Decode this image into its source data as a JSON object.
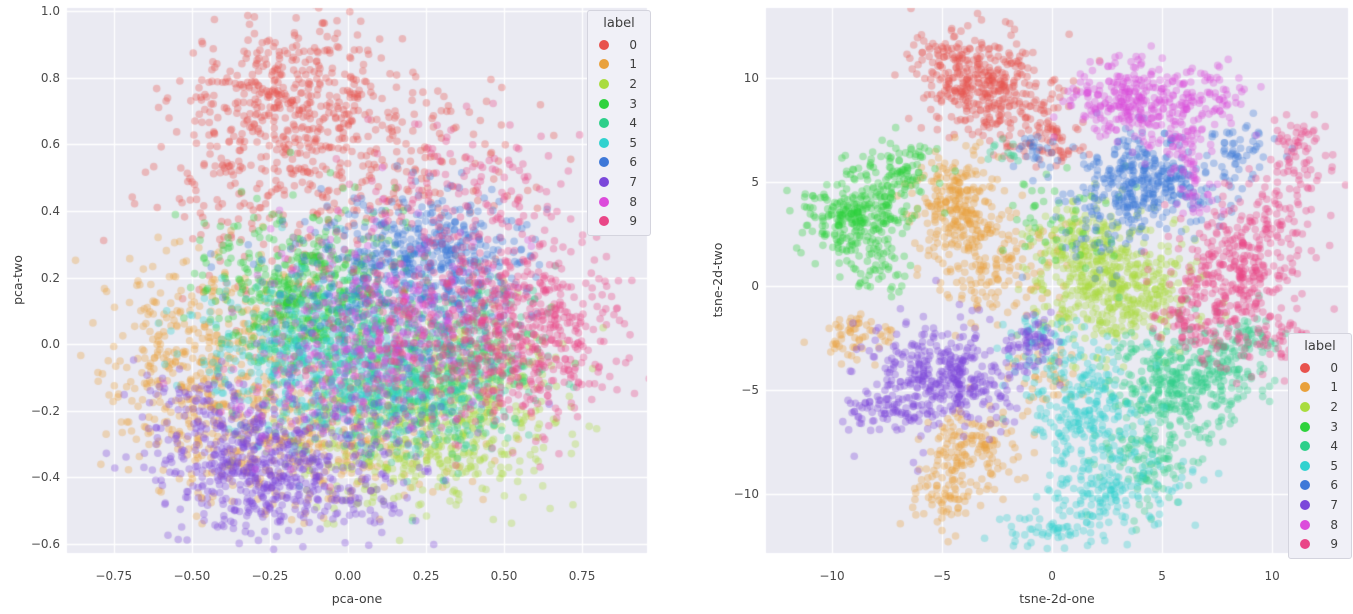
{
  "style": {
    "figure_bg": "#ffffff",
    "plot_bg": "#eaeaf2",
    "grid_color": "#ffffff",
    "tick_color": "#4a4a4a",
    "label_color": "#3d3d3d",
    "legend_bg": "#f0f0f7",
    "legend_border": "#d4d4de",
    "marker_alpha": 0.33,
    "marker_radius": 3.8
  },
  "chart_data": [
    {
      "type": "scatter",
      "title": "",
      "xlabel": "pca-one",
      "ylabel": "pca-two",
      "xlim": [
        -0.9,
        0.958
      ],
      "ylim": [
        -0.628,
        1.01
      ],
      "grid": true,
      "legend_position": "top-right",
      "xticks": [
        {
          "v": -0.75,
          "label": "−0.75"
        },
        {
          "v": -0.5,
          "label": "−0.50"
        },
        {
          "v": -0.25,
          "label": "−0.25"
        },
        {
          "v": 0.0,
          "label": "0.00"
        },
        {
          "v": 0.25,
          "label": "0.25"
        },
        {
          "v": 0.5,
          "label": "0.50"
        },
        {
          "v": 0.75,
          "label": "0.75"
        }
      ],
      "yticks": [
        {
          "v": 1.0,
          "label": "1.0"
        },
        {
          "v": 0.8,
          "label": "0.8"
        },
        {
          "v": 0.6,
          "label": "0.6"
        },
        {
          "v": 0.4,
          "label": "0.4"
        },
        {
          "v": 0.2,
          "label": "0.2"
        },
        {
          "v": 0.0,
          "label": "0.0"
        },
        {
          "v": -0.2,
          "label": "−0.2"
        },
        {
          "v": -0.4,
          "label": "−0.4"
        },
        {
          "v": -0.6,
          "label": "−0.6"
        }
      ],
      "legend": {
        "title": "label"
      },
      "series": [
        {
          "label": "0",
          "color": "#e8524d",
          "clusters": [
            [
              -0.18,
              0.74,
              0.18,
              0.11,
              420
            ],
            [
              0.05,
              0.52,
              0.26,
              0.12,
              170
            ],
            [
              -0.33,
              0.48,
              0.14,
              0.11,
              90
            ],
            [
              -0.05,
              0.2,
              0.25,
              0.12,
              60
            ],
            [
              0.3,
              0.6,
              0.15,
              0.1,
              40
            ]
          ]
        },
        {
          "label": "1",
          "color": "#e9a13c",
          "clusters": [
            [
              -0.42,
              -0.15,
              0.16,
              0.13,
              300
            ],
            [
              -0.15,
              -0.3,
              0.24,
              0.11,
              240
            ],
            [
              -0.55,
              0.05,
              0.12,
              0.12,
              100
            ],
            [
              -0.3,
              0.08,
              0.16,
              0.14,
              90
            ],
            [
              0.1,
              -0.2,
              0.2,
              0.1,
              80
            ]
          ]
        },
        {
          "label": "2",
          "color": "#a9dc3e",
          "clusters": [
            [
              0.27,
              -0.27,
              0.18,
              0.1,
              300
            ],
            [
              0.45,
              -0.12,
              0.12,
              0.12,
              140
            ],
            [
              0.05,
              -0.32,
              0.2,
              0.09,
              120
            ],
            [
              0.3,
              -0.05,
              0.15,
              0.1,
              80
            ]
          ]
        },
        {
          "label": "3",
          "color": "#2ed23c",
          "clusters": [
            [
              -0.14,
              0.11,
              0.12,
              0.09,
              300
            ],
            [
              -0.05,
              0.28,
              0.17,
              0.11,
              120
            ],
            [
              0.08,
              0.02,
              0.18,
              0.1,
              110
            ],
            [
              -0.3,
              0.2,
              0.12,
              0.1,
              60
            ]
          ]
        },
        {
          "label": "4",
          "color": "#2dcf8a",
          "clusters": [
            [
              0.3,
              -0.1,
              0.14,
              0.11,
              300
            ],
            [
              0.1,
              -0.05,
              0.18,
              0.11,
              150
            ],
            [
              0.45,
              0.02,
              0.1,
              0.1,
              80
            ],
            [
              0.2,
              -0.22,
              0.15,
              0.08,
              70
            ]
          ]
        },
        {
          "label": "5",
          "color": "#31d2cf",
          "clusters": [
            [
              -0.02,
              -0.08,
              0.16,
              0.11,
              300
            ],
            [
              -0.25,
              -0.05,
              0.15,
              0.11,
              140
            ],
            [
              0.18,
              -0.15,
              0.14,
              0.09,
              100
            ],
            [
              -0.1,
              0.1,
              0.15,
              0.1,
              60
            ]
          ]
        },
        {
          "label": "6",
          "color": "#3e78d8",
          "clusters": [
            [
              0.26,
              0.28,
              0.13,
              0.09,
              320
            ],
            [
              0.05,
              0.16,
              0.2,
              0.12,
              180
            ],
            [
              0.44,
              0.18,
              0.11,
              0.09,
              60
            ],
            [
              0.2,
              0.05,
              0.15,
              0.1,
              60
            ]
          ]
        },
        {
          "label": "7",
          "color": "#7b47da",
          "clusters": [
            [
              -0.3,
              -0.37,
              0.15,
              0.1,
              320
            ],
            [
              -0.12,
              -0.42,
              0.17,
              0.08,
              190
            ],
            [
              -0.45,
              -0.25,
              0.12,
              0.1,
              120
            ],
            [
              0.02,
              -0.25,
              0.18,
              0.1,
              90
            ]
          ]
        },
        {
          "label": "8",
          "color": "#dc4bdb",
          "clusters": [
            [
              0.1,
              0.0,
              0.17,
              0.12,
              200
            ],
            [
              0.28,
              0.08,
              0.14,
              0.11,
              120
            ],
            [
              -0.1,
              -0.12,
              0.18,
              0.1,
              90
            ],
            [
              0.02,
              0.2,
              0.15,
              0.1,
              50
            ]
          ]
        },
        {
          "label": "9",
          "color": "#e94687",
          "clusters": [
            [
              0.63,
              0.05,
              0.12,
              0.13,
              320
            ],
            [
              0.42,
              0.1,
              0.14,
              0.14,
              190
            ],
            [
              0.35,
              0.45,
              0.17,
              0.12,
              140
            ],
            [
              0.15,
              0.0,
              0.18,
              0.13,
              110
            ],
            [
              0.5,
              -0.15,
              0.12,
              0.08,
              60
            ]
          ]
        }
      ]
    },
    {
      "type": "scatter",
      "title": "",
      "xlabel": "tsne-2d-one",
      "ylabel": "tsne-2d-two",
      "xlim": [
        -13.0,
        13.45
      ],
      "ylim": [
        -12.84,
        13.37
      ],
      "grid": true,
      "legend_position": "center-right",
      "xticks": [
        {
          "v": -10,
          "label": "−10"
        },
        {
          "v": -5,
          "label": "−5"
        },
        {
          "v": 0,
          "label": "0"
        },
        {
          "v": 5,
          "label": "5"
        },
        {
          "v": 10,
          "label": "10"
        }
      ],
      "yticks": [
        {
          "v": 10,
          "label": "10"
        },
        {
          "v": 5,
          "label": "5"
        },
        {
          "v": 0,
          "label": "0"
        },
        {
          "v": -5,
          "label": "−5"
        },
        {
          "v": -10,
          "label": "−10"
        }
      ],
      "legend": {
        "title": "label"
      },
      "series": [
        {
          "label": "0",
          "color": "#e8524d",
          "clusters": [
            [
              -3.3,
              9.9,
              1.4,
              1.1,
              300
            ],
            [
              -1.2,
              8.0,
              1.2,
              0.9,
              100
            ],
            [
              -5.2,
              11.2,
              0.7,
              0.6,
              40
            ],
            [
              0.3,
              6.6,
              0.7,
              0.6,
              30
            ]
          ]
        },
        {
          "label": "1",
          "color": "#e9a13c",
          "clusters": [
            [
              -4.4,
              3.9,
              1.0,
              1.3,
              220
            ],
            [
              -2.7,
              1.2,
              1.3,
              1.6,
              180
            ],
            [
              -8.8,
              -2.4,
              0.7,
              0.6,
              60
            ],
            [
              -3.6,
              -7.7,
              1.0,
              0.9,
              130
            ],
            [
              -4.9,
              -10.0,
              0.8,
              1.1,
              80
            ],
            [
              -0.3,
              -4.2,
              0.8,
              0.8,
              40
            ]
          ]
        },
        {
          "label": "2",
          "color": "#a9dc3e",
          "clusters": [
            [
              2.7,
              0.0,
              1.7,
              1.5,
              500
            ],
            [
              1.3,
              2.3,
              1.0,
              0.8,
              100
            ]
          ]
        },
        {
          "label": "3",
          "color": "#2ed23c",
          "clusters": [
            [
              -8.9,
              3.4,
              1.1,
              1.0,
              280
            ],
            [
              -6.8,
              5.6,
              0.9,
              0.8,
              90
            ],
            [
              -7.8,
              0.8,
              0.6,
              0.6,
              40
            ],
            [
              0.5,
              3.2,
              1.4,
              1.3,
              50
            ]
          ]
        },
        {
          "label": "4",
          "color": "#2dcf8a",
          "clusters": [
            [
              5.9,
              -4.6,
              1.5,
              1.3,
              380
            ],
            [
              4.2,
              -8.2,
              1.0,
              1.3,
              110
            ],
            [
              8.8,
              -3.0,
              0.8,
              0.8,
              70
            ],
            [
              -2.2,
              6.4,
              0.4,
              0.4,
              12
            ]
          ]
        },
        {
          "label": "5",
          "color": "#31d2cf",
          "clusters": [
            [
              1.6,
              -5.8,
              1.3,
              1.4,
              220
            ],
            [
              2.7,
              -9.6,
              1.6,
              1.0,
              160
            ],
            [
              0.2,
              -11.6,
              1.3,
              0.5,
              60
            ],
            [
              -0.5,
              -3.0,
              0.9,
              0.9,
              60
            ]
          ]
        },
        {
          "label": "6",
          "color": "#3e78d8",
          "clusters": [
            [
              4.3,
              4.9,
              1.5,
              1.1,
              350
            ],
            [
              8.7,
              6.6,
              0.7,
              0.7,
              50
            ],
            [
              -0.6,
              6.4,
              0.5,
              0.5,
              25
            ],
            [
              2.0,
              2.3,
              1.4,
              1.2,
              40
            ]
          ]
        },
        {
          "label": "7",
          "color": "#7b47da",
          "clusters": [
            [
              -4.9,
              -4.3,
              1.6,
              1.3,
              380
            ],
            [
              -7.7,
              -5.9,
              0.9,
              0.5,
              70
            ],
            [
              -0.9,
              -2.7,
              0.6,
              0.6,
              60
            ]
          ]
        },
        {
          "label": "8",
          "color": "#dc4bdb",
          "clusters": [
            [
              3.6,
              8.9,
              1.3,
              0.9,
              260
            ],
            [
              5.8,
              7.1,
              1.0,
              0.9,
              90
            ],
            [
              7.2,
              9.4,
              0.9,
              0.7,
              60
            ],
            [
              6.3,
              4.7,
              0.5,
              0.8,
              30
            ]
          ]
        },
        {
          "label": "9",
          "color": "#e94687",
          "clusters": [
            [
              8.3,
              0.3,
              1.3,
              1.9,
              330
            ],
            [
              10.1,
              2.9,
              0.9,
              1.2,
              90
            ],
            [
              11.2,
              6.2,
              0.8,
              1.0,
              70
            ],
            [
              6.3,
              -1.6,
              0.8,
              0.8,
              60
            ],
            [
              10.8,
              -2.5,
              0.7,
              0.8,
              40
            ]
          ]
        }
      ]
    }
  ]
}
